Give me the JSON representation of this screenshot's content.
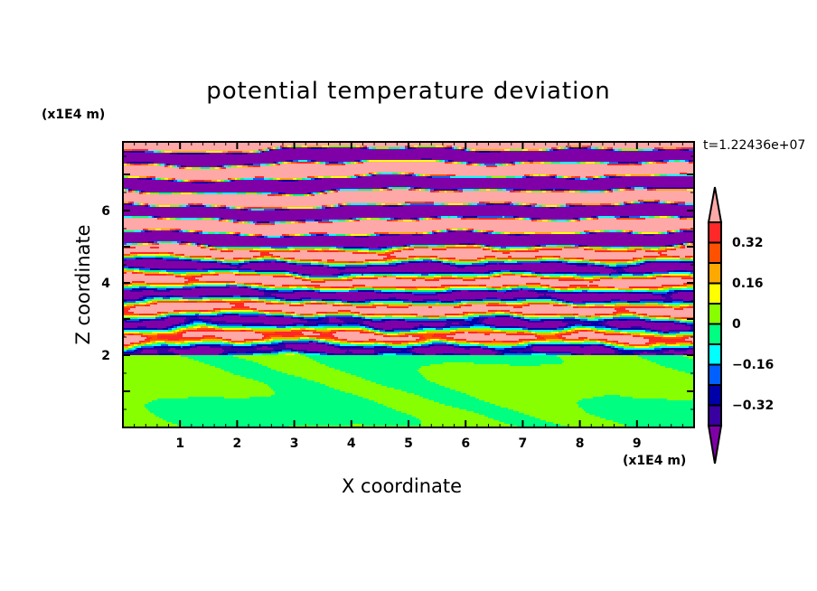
{
  "chart_data": {
    "type": "heatmap",
    "title": "potential temperature deviation",
    "xlabel": "X coordinate",
    "ylabel": "Z coordinate",
    "x_unit": "(x1E4 m)",
    "y_unit": "(x1E4 m)",
    "annotation": "t=1.22436e+07",
    "xlim": [
      0,
      10
    ],
    "ylim": [
      0,
      7.9
    ],
    "x_ticks": [
      1,
      2,
      3,
      4,
      5,
      6,
      7,
      8,
      9
    ],
    "x_tick_labels": [
      "1",
      "2",
      "3",
      "4",
      "5",
      "6",
      "7",
      "8",
      "9"
    ],
    "y_ticks": [
      2,
      4,
      6
    ],
    "y_tick_labels": [
      "2",
      "4",
      "6"
    ],
    "colorbar": {
      "levels": [
        -0.4,
        -0.32,
        -0.24,
        -0.16,
        -0.08,
        0,
        0.08,
        0.16,
        0.24,
        0.32,
        0.4
      ],
      "labeled_levels": [
        0.32,
        0.16,
        0,
        -0.16,
        -0.32
      ],
      "labels": [
        "0.32",
        "0.16",
        "0",
        "−0.16",
        "−0.32"
      ],
      "colors_low_to_high": [
        "#8000a8",
        "#3800a0",
        "#0000a8",
        "#0060ff",
        "#00ffff",
        "#00ff80",
        "#88ff00",
        "#ffff00",
        "#ffa800",
        "#ff5000",
        "#ff2828",
        "#ffa8a8"
      ],
      "extend": "both"
    },
    "description_of_field": {
      "stable_layer_above_z": 2,
      "below_layer_range": [
        -0.08,
        0.08
      ]
    }
  }
}
